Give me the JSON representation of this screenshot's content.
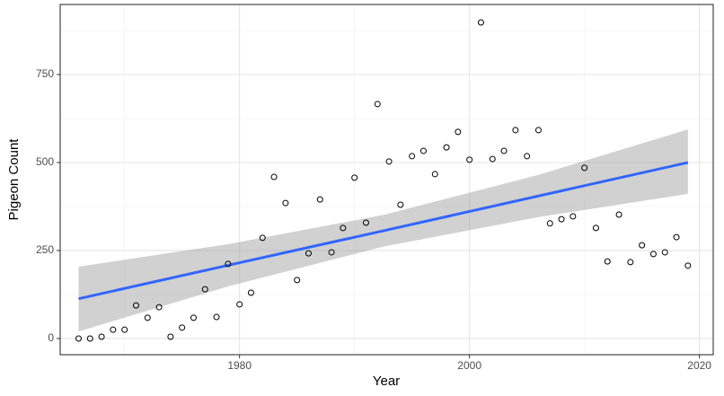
{
  "chart_data": {
    "type": "scatter",
    "xlabel": "Year",
    "ylabel": "Pigeon Count",
    "x": [
      1966,
      1967,
      1968,
      1969,
      1970,
      1971,
      1972,
      1973,
      1974,
      1975,
      1976,
      1977,
      1978,
      1979,
      1980,
      1981,
      1982,
      1983,
      1984,
      1985,
      1986,
      1987,
      1988,
      1989,
      1990,
      1991,
      1992,
      1993,
      1994,
      1995,
      1996,
      1997,
      1998,
      1999,
      2000,
      2001,
      2002,
      2003,
      2004,
      2005,
      2006,
      2007,
      2008,
      2009,
      2010,
      2011,
      2012,
      2013,
      2014,
      2015,
      2016,
      2017,
      2018,
      2019
    ],
    "values": [
      0,
      0,
      5,
      25,
      25,
      94,
      59,
      89,
      5,
      31,
      59,
      140,
      61,
      212,
      97,
      130,
      286,
      459,
      385,
      166,
      242,
      395,
      245,
      314,
      457,
      329,
      666,
      503,
      380,
      518,
      533,
      467,
      543,
      587,
      508,
      898,
      510,
      533,
      592,
      518,
      592,
      327,
      339,
      347,
      485,
      314,
      219,
      352,
      217,
      265,
      240,
      245,
      288,
      207
    ],
    "color": "#000000",
    "fit": {
      "x": [
        1966,
        1979,
        1992.5,
        2006,
        2019
      ],
      "values": [
        113,
        208,
        306,
        405,
        500
      ],
      "lower": [
        20,
        148,
        261,
        345,
        411
      ],
      "upper": [
        204,
        268,
        351,
        465,
        594
      ],
      "color": "#3366ff",
      "band_color": "#999999"
    },
    "xlim": [
      1964.4,
      2021.2
    ],
    "ylim": [
      -46,
      949
    ],
    "xticks": [
      1980,
      2000,
      2020
    ],
    "yticks": [
      0,
      250,
      500,
      750
    ],
    "grid": true
  }
}
